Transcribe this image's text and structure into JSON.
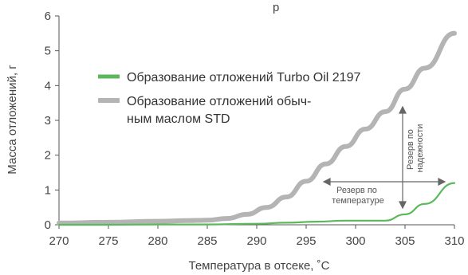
{
  "chart_data": {
    "type": "line",
    "xlabel": "Температура в отсеке, ˚С",
    "ylabel": "Масса отложений, г",
    "title_fragment": "р",
    "xlim": [
      270,
      310
    ],
    "ylim": [
      0,
      6
    ],
    "xticks": [
      "270",
      "275",
      "280",
      "285",
      "290",
      "295",
      "300",
      "305",
      "310"
    ],
    "yticks": [
      "0",
      "1",
      "2",
      "3",
      "4",
      "5",
      "6"
    ],
    "grid": false,
    "legend_position": "upper-left",
    "series": [
      {
        "name_lines": [
          "Образование отложений Turbo Oil 2197"
        ],
        "color": "#5cb85c",
        "x": [
          270,
          275,
          280,
          285,
          290,
          293,
          296,
          299,
          301,
          303,
          305,
          307,
          310
        ],
        "y": [
          0.0,
          0.0,
          0.01,
          0.01,
          0.03,
          0.06,
          0.09,
          0.12,
          0.12,
          0.12,
          0.3,
          0.6,
          1.2
        ]
      },
      {
        "name_lines": [
          "Образование отложений обыч-",
          "ным маслом STD"
        ],
        "color": "#b4b4b4",
        "x": [
          270,
          275,
          280,
          283,
          285,
          287,
          289,
          291,
          293,
          295,
          297,
          299,
          301,
          303,
          305,
          307,
          310
        ],
        "y": [
          0.05,
          0.07,
          0.1,
          0.12,
          0.13,
          0.18,
          0.3,
          0.5,
          0.8,
          1.25,
          1.75,
          2.25,
          2.75,
          3.25,
          3.9,
          4.5,
          5.5
        ]
      }
    ],
    "annotations": [
      {
        "text_lines": [
          "Резерв по",
          "температуре"
        ]
      },
      {
        "text_lines": [
          "Резерв по",
          "надежности"
        ]
      }
    ]
  }
}
